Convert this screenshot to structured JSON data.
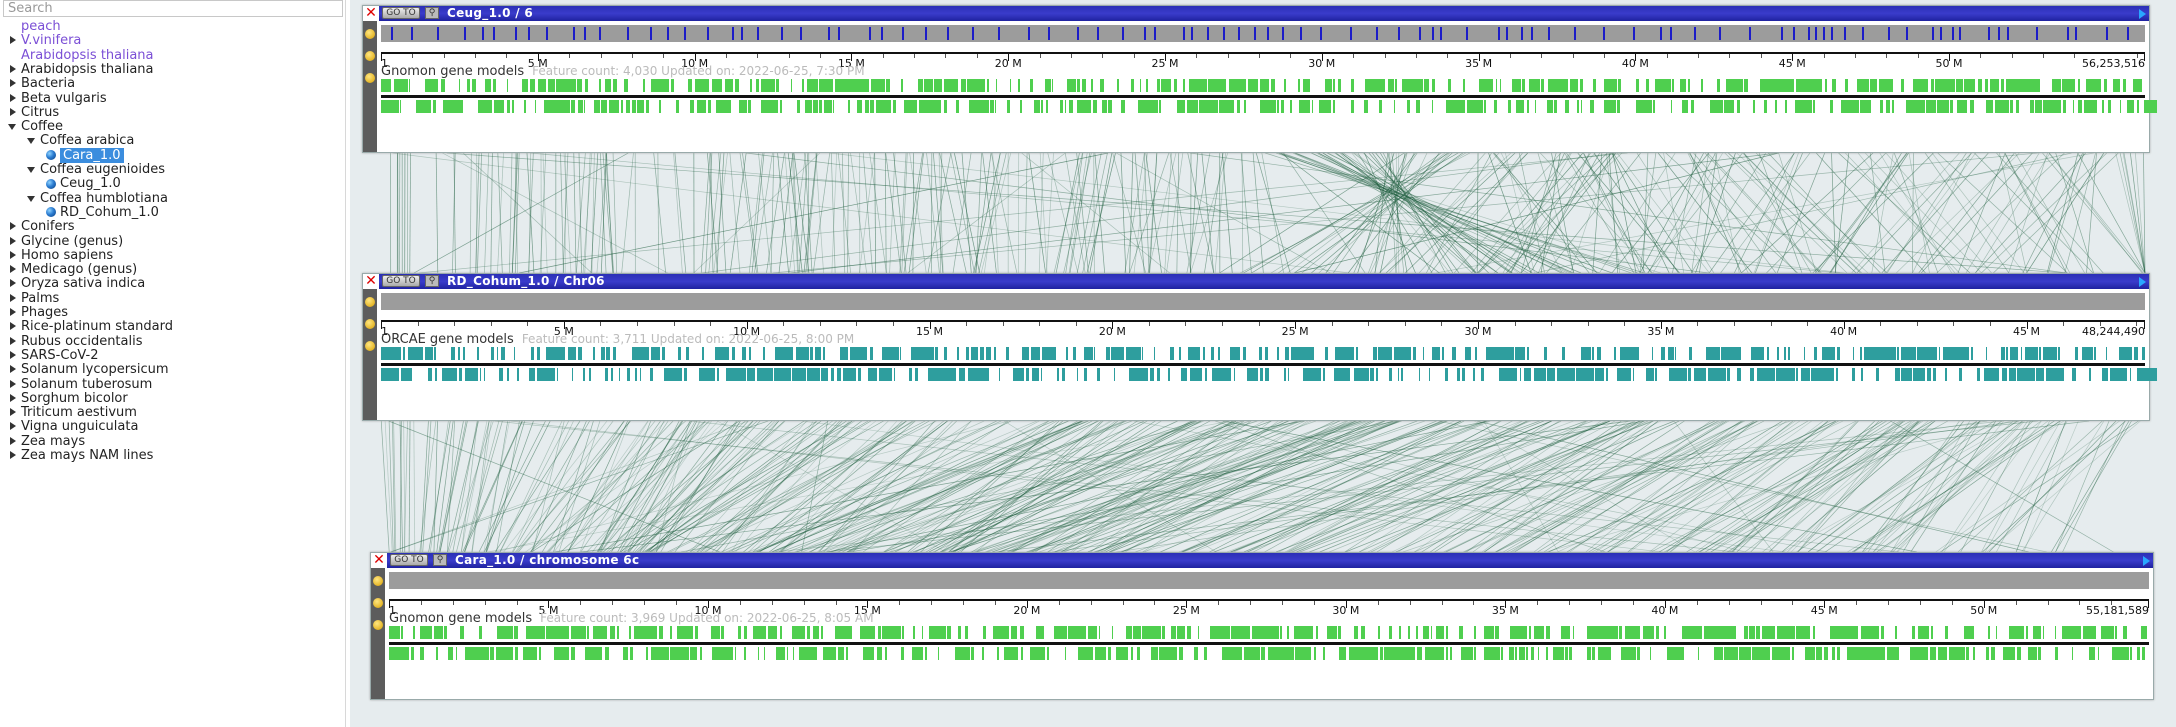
{
  "search": {
    "placeholder": "Search"
  },
  "tree": [
    {
      "label": "peach",
      "depth": 0,
      "type": "leaf-link",
      "visited": true
    },
    {
      "label": "V.vinifera",
      "depth": 0,
      "type": "closed",
      "visited": true
    },
    {
      "label": "Arabidopsis thaliana",
      "depth": 0,
      "type": "leaf-link",
      "visited": true
    },
    {
      "label": "Arabidopsis thaliana",
      "depth": 0,
      "type": "closed"
    },
    {
      "label": "Bacteria",
      "depth": 0,
      "type": "closed"
    },
    {
      "label": "Beta vulgaris",
      "depth": 0,
      "type": "closed"
    },
    {
      "label": "Citrus",
      "depth": 0,
      "type": "closed"
    },
    {
      "label": "Coffee",
      "depth": 0,
      "type": "open"
    },
    {
      "label": "Coffea arabica",
      "depth": 1,
      "type": "open"
    },
    {
      "label": "Cara_1.0",
      "depth": 2,
      "type": "leaf",
      "selected": true
    },
    {
      "label": "Coffea eugenioides",
      "depth": 1,
      "type": "open"
    },
    {
      "label": "Ceug_1.0",
      "depth": 2,
      "type": "leaf"
    },
    {
      "label": "Coffea humblotiana",
      "depth": 1,
      "type": "open"
    },
    {
      "label": "RD_Cohum_1.0",
      "depth": 2,
      "type": "leaf"
    },
    {
      "label": "Conifers",
      "depth": 0,
      "type": "closed"
    },
    {
      "label": "Glycine (genus)",
      "depth": 0,
      "type": "closed"
    },
    {
      "label": "Homo sapiens",
      "depth": 0,
      "type": "closed"
    },
    {
      "label": "Medicago (genus)",
      "depth": 0,
      "type": "closed"
    },
    {
      "label": "Oryza sativa indica",
      "depth": 0,
      "type": "closed"
    },
    {
      "label": "Palms",
      "depth": 0,
      "type": "closed"
    },
    {
      "label": "Phages",
      "depth": 0,
      "type": "closed"
    },
    {
      "label": "Rice-platinum standard",
      "depth": 0,
      "type": "closed"
    },
    {
      "label": "Rubus occidentalis",
      "depth": 0,
      "type": "closed"
    },
    {
      "label": "SARS-CoV-2",
      "depth": 0,
      "type": "closed"
    },
    {
      "label": "Solanum lycopersicum",
      "depth": 0,
      "type": "closed"
    },
    {
      "label": "Solanum tuberosum",
      "depth": 0,
      "type": "closed"
    },
    {
      "label": "Sorghum bicolor",
      "depth": 0,
      "type": "closed"
    },
    {
      "label": "Triticum aestivum",
      "depth": 0,
      "type": "closed"
    },
    {
      "label": "Vigna unguiculata",
      "depth": 0,
      "type": "closed"
    },
    {
      "label": "Zea mays",
      "depth": 0,
      "type": "closed"
    },
    {
      "label": "Zea mays NAM lines",
      "depth": 0,
      "type": "closed"
    }
  ],
  "tracks": [
    {
      "id": "ceug",
      "goto_label": "GO TO",
      "title": "Ceug_1.0 / 6",
      "ticks": [
        "1",
        "5 M",
        "10 M",
        "15 M",
        "20 M",
        "25 M",
        "30 M",
        "35 M",
        "40 M",
        "45 M",
        "50 M",
        "56,253,516"
      ],
      "tick_values": [
        0,
        5,
        10,
        15,
        20,
        25,
        30,
        35,
        40,
        45,
        50,
        56.25
      ],
      "length_mb": 56.25,
      "annotation": "Gnomon gene models",
      "annotation_meta": "Feature count: 4,030  Updated on: 2022-06-25, 7:30 PM",
      "feature_color": "#4fcf4f",
      "overview_marks": true
    },
    {
      "id": "cohum",
      "goto_label": "GO TO",
      "title": "RD_Cohum_1.0 / Chr06",
      "ticks": [
        "1",
        "5 M",
        "10 M",
        "15 M",
        "20 M",
        "25 M",
        "30 M",
        "35 M",
        "40 M",
        "45 M",
        "48,244,490"
      ],
      "tick_values": [
        0,
        5,
        10,
        15,
        20,
        25,
        30,
        35,
        40,
        45,
        48.24
      ],
      "length_mb": 48.24,
      "annotation": "ORCAE gene models",
      "annotation_meta": "Feature count: 3,711  Updated on: 2022-06-25, 8:00 PM",
      "feature_color": "#2e9e9e",
      "overview_marks": false
    },
    {
      "id": "cara",
      "goto_label": "GO TO",
      "title": "Cara_1.0 / chromosome 6c",
      "ticks": [
        "1",
        "5 M",
        "10 M",
        "15 M",
        "20 M",
        "25 M",
        "30 M",
        "35 M",
        "40 M",
        "45 M",
        "50 M",
        "55,181,589"
      ],
      "tick_values": [
        0,
        5,
        10,
        15,
        20,
        25,
        30,
        35,
        40,
        45,
        50,
        55.18
      ],
      "length_mb": 55.18,
      "annotation": "Gnomon gene models",
      "annotation_meta": "Feature count: 3,969  Updated on: 2022-06-25, 8:05 AM",
      "feature_color": "#4fcf4f",
      "overview_marks": false
    }
  ],
  "colors": {
    "titlebar": "#2b2fb6",
    "link": "#1f5f3f",
    "overview_mark": "#1c1cc8",
    "background": "#e6ecee"
  }
}
